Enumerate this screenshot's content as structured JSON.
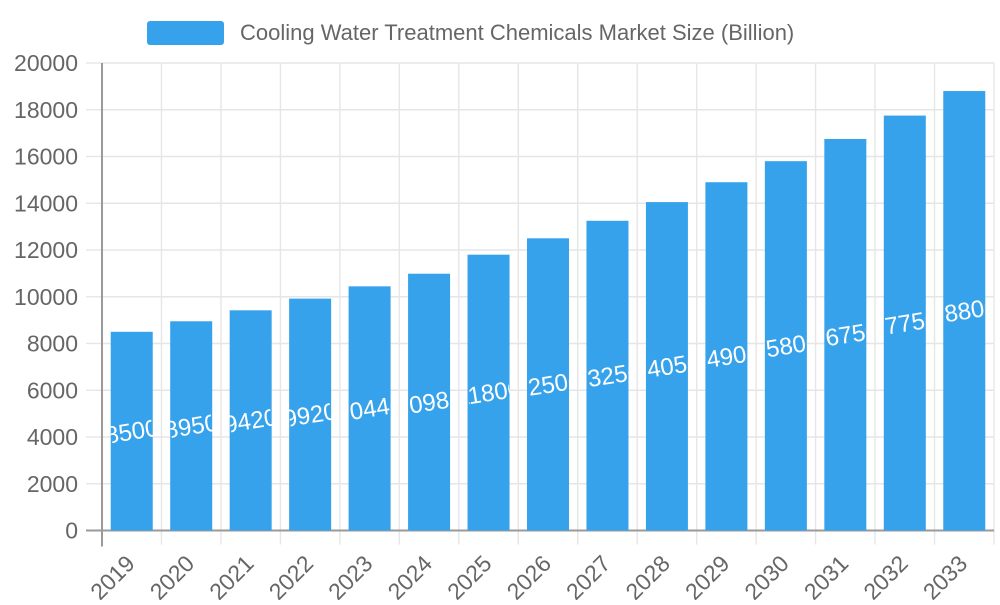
{
  "legend": {
    "label": "Cooling Water Treatment Chemicals Market Size (Billion)",
    "marker_color": "#36A2EB"
  },
  "chart_data": {
    "type": "bar",
    "title": "Cooling Water Treatment Chemicals Market Size (Billion)",
    "categories": [
      "2019",
      "2020",
      "2021",
      "2022",
      "2023",
      "2024",
      "2025",
      "2026",
      "2027",
      "2028",
      "2029",
      "2030",
      "2031",
      "2032",
      "2033"
    ],
    "values": [
      8500,
      8950,
      9420,
      9920,
      10445,
      10985,
      11800,
      12500,
      13250,
      14050,
      14900,
      15800,
      16750,
      17750,
      18800
    ],
    "xlabel": "",
    "ylabel": "",
    "ylim": [
      0,
      20000
    ],
    "ytick_step": 2000,
    "grid": true,
    "legend_position": "top",
    "bar_color": "#36A2EB",
    "value_label_color": "#ffffff",
    "axis_text_color": "#666666",
    "grid_color": "#e6e6e6",
    "axis_line_color": "#9a9a9a"
  }
}
